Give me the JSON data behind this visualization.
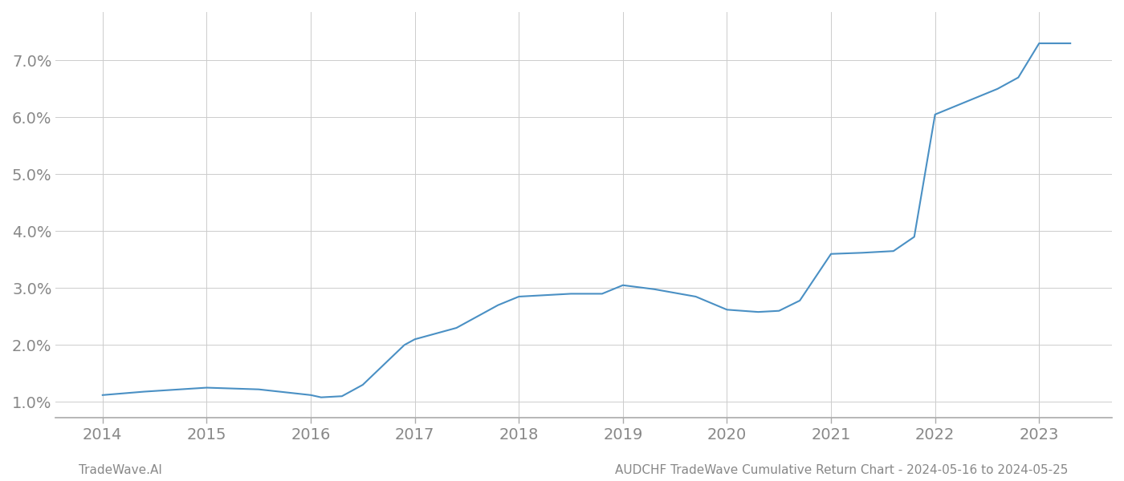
{
  "x_years": [
    2014.0,
    2014.4,
    2015.0,
    2015.5,
    2016.0,
    2016.05,
    2016.1,
    2016.3,
    2016.5,
    2016.7,
    2016.9,
    2017.0,
    2017.2,
    2017.4,
    2017.6,
    2017.8,
    2018.0,
    2018.2,
    2018.5,
    2018.8,
    2019.0,
    2019.3,
    2019.7,
    2020.0,
    2020.3,
    2020.5,
    2020.7,
    2021.0,
    2021.3,
    2021.6,
    2021.8,
    2022.0,
    2022.2,
    2022.4,
    2022.6,
    2022.8,
    2023.0,
    2023.3
  ],
  "y_values": [
    1.12,
    1.18,
    1.25,
    1.22,
    1.12,
    1.1,
    1.08,
    1.1,
    1.3,
    1.65,
    2.0,
    2.1,
    2.2,
    2.3,
    2.5,
    2.7,
    2.85,
    2.87,
    2.9,
    2.9,
    3.05,
    2.98,
    2.85,
    2.62,
    2.58,
    2.6,
    2.78,
    3.6,
    3.62,
    3.65,
    3.9,
    6.05,
    6.2,
    6.35,
    6.5,
    6.7,
    7.3,
    7.3
  ],
  "line_color": "#4a90c4",
  "line_width": 1.5,
  "background_color": "#ffffff",
  "grid_color": "#cccccc",
  "xlabel_years": [
    2014,
    2015,
    2016,
    2017,
    2018,
    2019,
    2020,
    2021,
    2022,
    2023
  ],
  "yticks": [
    1.0,
    2.0,
    3.0,
    4.0,
    5.0,
    6.0,
    7.0
  ],
  "ylim": [
    0.72,
    7.85
  ],
  "xlim": [
    2013.55,
    2023.7
  ],
  "footer_left": "TradeWave.AI",
  "footer_right": "AUDCHF TradeWave Cumulative Return Chart - 2024-05-16 to 2024-05-25",
  "font_color": "#888888",
  "font_size_ticks": 14,
  "font_size_footer": 11
}
